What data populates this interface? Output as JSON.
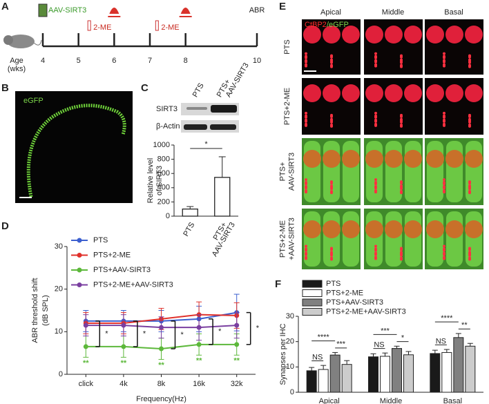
{
  "panels": [
    "A",
    "B",
    "C",
    "D",
    "E",
    "F"
  ],
  "timeline": {
    "drug": "AAV-SIRT3",
    "treatment": [
      "2-ME",
      "2-ME"
    ],
    "endpoint": "ABR",
    "age_label": [
      "Age",
      "(wks)"
    ],
    "weeks": [
      4,
      5,
      6,
      7,
      8,
      10
    ]
  },
  "image_b": {
    "label": "eGFP"
  },
  "blot": {
    "lanes": [
      [
        "PTS"
      ],
      [
        "PTS+",
        "AAV-SIRT3"
      ]
    ],
    "proteins": [
      "SIRT3",
      "β-Actin"
    ]
  },
  "image_e": {
    "columns": [
      "Apical",
      "Middle",
      "Basal"
    ],
    "rows": [
      [
        "PTS"
      ],
      [
        "PTS+2-ME"
      ],
      [
        "PTS+",
        "AAV-SIRT3"
      ],
      [
        "PTS+2-ME",
        "+AAV-SIRT3"
      ]
    ],
    "stain_red": "CtBP2",
    "stain_green": "/eGFP"
  },
  "chart_data": [
    {
      "type": "bar",
      "categories": [
        [
          "PTS"
        ],
        [
          "PTS+",
          "AAV-SIRT3"
        ]
      ],
      "ylabel": [
        "Relative level",
        "of SIRT3"
      ],
      "values": [
        100,
        545
      ],
      "errors": [
        35,
        290
      ],
      "color": "#ffffff",
      "ylim": [
        0,
        1000
      ],
      "yticks": [
        0,
        200,
        400,
        600,
        800,
        1000
      ],
      "annotations": [
        "*"
      ]
    },
    {
      "type": "line",
      "categories": [
        "click",
        "4k",
        "8k",
        "16k",
        "32k"
      ],
      "xlabel": "Frequency(Hz)",
      "ylabel": [
        "ABR threshold shift",
        "(dB SPL)"
      ],
      "ylim": [
        0,
        30
      ],
      "yticks": [
        0,
        10,
        20,
        30
      ],
      "series": [
        {
          "name": "PTS",
          "color": "#3b5fcf",
          "values": [
            12.5,
            12.5,
            12.5,
            13,
            14.5
          ],
          "errors": [
            2.5,
            2.5,
            2.5,
            3,
            4.3
          ]
        },
        {
          "name": "PTS+2-ME",
          "color": "#e0302a",
          "values": [
            12,
            12,
            13,
            14,
            13.8
          ],
          "errors": [
            2.5,
            2.5,
            2.5,
            3,
            3
          ]
        },
        {
          "name": "PTS+AAV-SIRT3",
          "color": "#5cb83a",
          "values": [
            6.5,
            6.5,
            6,
            7,
            7
          ],
          "errors": [
            2.5,
            2.5,
            2.5,
            2.5,
            2.5
          ]
        },
        {
          "name": "PTS+2-ME+AAV-SIRT3",
          "color": "#7a3fa0",
          "values": [
            11.5,
            11.5,
            11,
            11,
            11.5
          ],
          "errors": [
            2.5,
            2.5,
            2.5,
            3,
            3
          ]
        }
      ],
      "annotations": [
        "*",
        "*",
        "*",
        "*",
        "*",
        "**",
        "**",
        "**",
        "**",
        "**"
      ]
    },
    {
      "type": "bar",
      "categories": [
        "Apical",
        "Middle",
        "Basal"
      ],
      "ylabel": "Synapses per IHC",
      "ylim": [
        0,
        30
      ],
      "yticks": [
        0,
        10,
        20,
        30
      ],
      "series": [
        {
          "name": "PTS",
          "color": "#1a1a1a",
          "values": [
            8.5,
            14,
            15.3
          ],
          "errors": [
            1.3,
            1.2,
            1.3
          ]
        },
        {
          "name": "PTS+2-ME",
          "color": "#ffffff",
          "values": [
            9,
            14.2,
            15.7
          ],
          "errors": [
            1.6,
            1.3,
            1.2
          ]
        },
        {
          "name": "PTS+AAV-SIRT3",
          "color": "#808080",
          "values": [
            14.7,
            17.3,
            21.6
          ],
          "errors": [
            1.0,
            0.9,
            1.6
          ]
        },
        {
          "name": "PTS+2-ME+AAV-SIRT3",
          "color": "#cccccc",
          "values": [
            11,
            14.8,
            18.2
          ],
          "errors": [
            1.5,
            1.3,
            1.1
          ]
        }
      ],
      "annotations": [
        [
          "NS",
          "****",
          "***"
        ],
        [
          "NS",
          "***",
          "*"
        ],
        [
          "NS",
          "****",
          "**"
        ]
      ]
    }
  ]
}
